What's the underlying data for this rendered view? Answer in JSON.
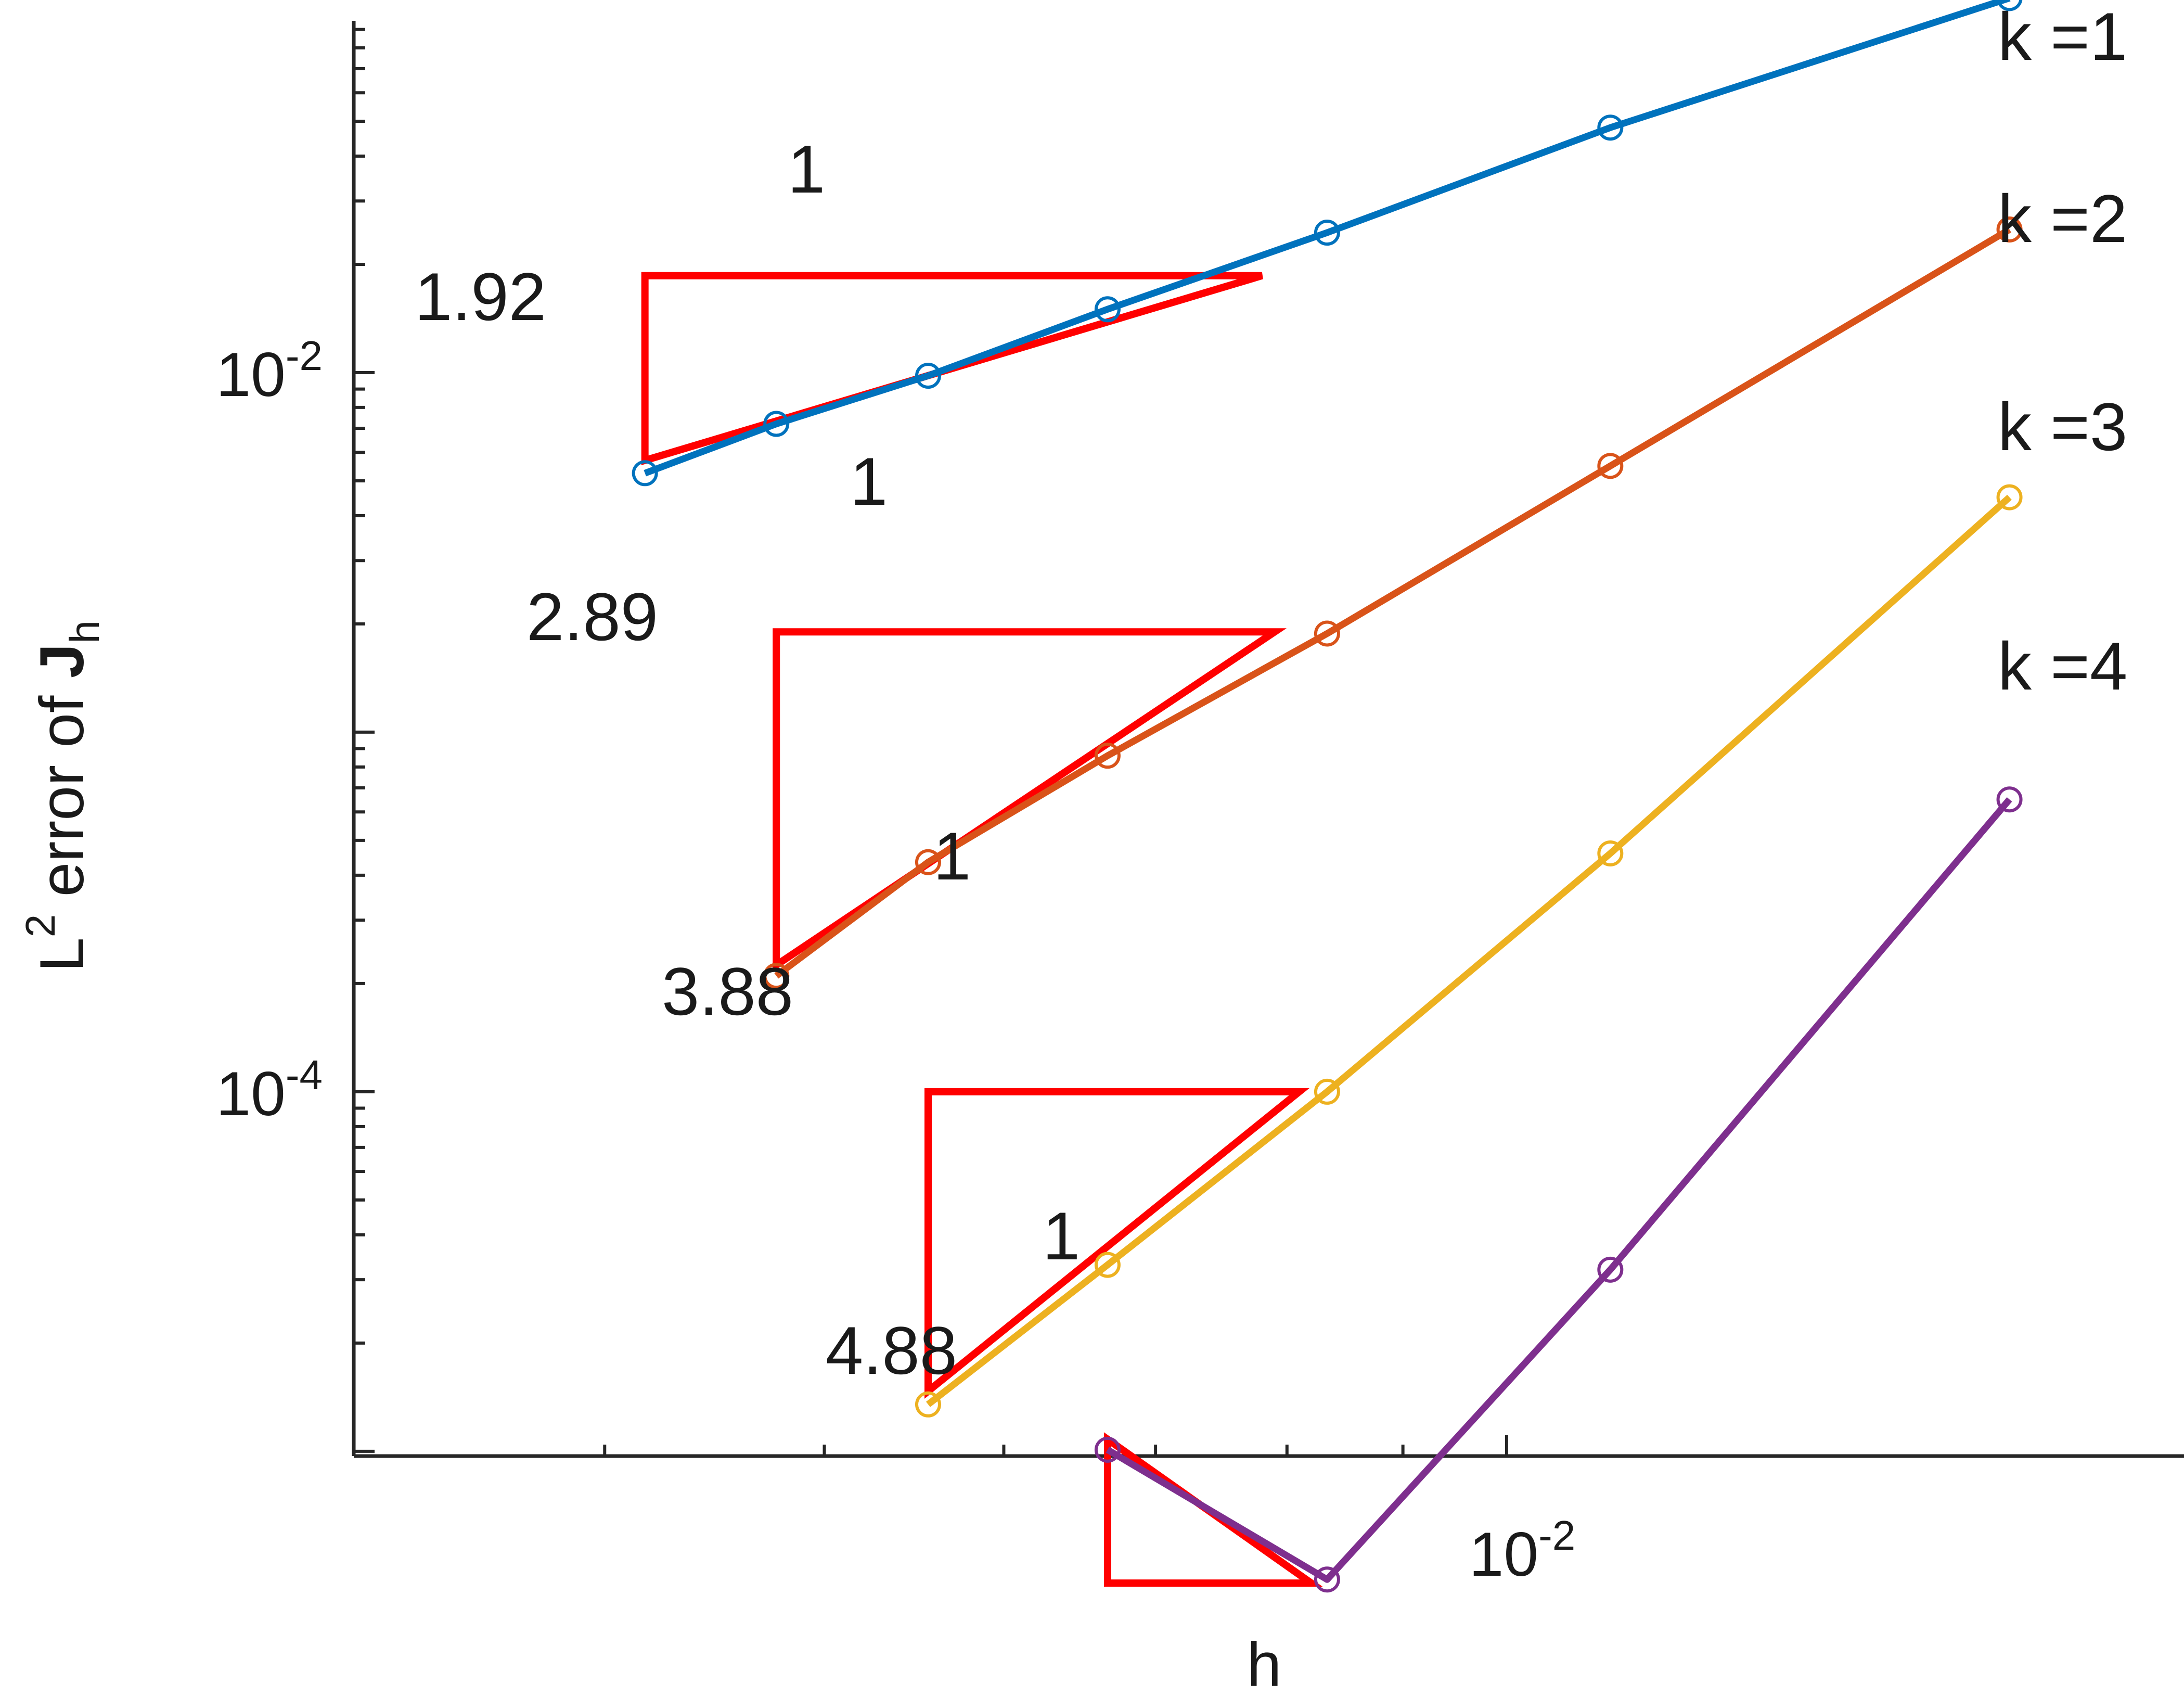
{
  "chart_data": {
    "type": "line",
    "xlabel": "h",
    "ylabel": "L² error of J",
    "ylabel_parts": {
      "superscript": "2",
      "pre": "L",
      "mid": " error of ",
      "bold": "J",
      "subscript": "h"
    },
    "xscale": "log",
    "yscale": "log",
    "xlim": [
      0.0031,
      0.0199
    ],
    "ylim": [
      9.7e-06,
      0.092
    ],
    "x_ticks": [
      {
        "value": 0.01,
        "base": "10",
        "exp": "-2"
      }
    ],
    "y_ticks": [
      {
        "value": 0.0001,
        "base": "10",
        "exp": "-4"
      },
      {
        "value": 0.01,
        "base": "10",
        "exp": "-2"
      }
    ],
    "grid": false,
    "x": [
      0.004167,
      0.004762,
      0.005556,
      0.006667,
      0.008333,
      0.011111,
      0.016667
    ],
    "series": [
      {
        "name": "k =1",
        "color": "#0072bd",
        "x": [
          0.004167,
          0.004762,
          0.005556,
          0.006667,
          0.008333,
          0.011111,
          0.016667
        ],
        "values": [
          0.00525,
          0.0072,
          0.0098,
          0.015,
          0.0245,
          0.048,
          0.11
        ]
      },
      {
        "name": "k =2",
        "color": "#d95319",
        "x": [
          0.004762,
          0.005556,
          0.006667,
          0.008333,
          0.011111,
          0.016667
        ],
        "values": [
          0.00021,
          0.000435,
          0.00086,
          0.00188,
          0.0055,
          0.025
        ]
      },
      {
        "name": "k =3",
        "color": "#edb120",
        "x": [
          0.005556,
          0.006667,
          0.008333,
          0.011111,
          0.016667
        ],
        "values": [
          1.35e-05,
          3.3e-05,
          0.0001,
          0.00046,
          0.0045
        ]
      },
      {
        "name": "k =4",
        "color": "#7e2f8e",
        "x": [
          0.006667,
          0.008333,
          0.011111,
          0.016667
        ],
        "values": [
          1.01e-05,
          4.4e-06,
          3.2e-05,
          0.00065
        ]
      }
    ],
    "slope_triangles": [
      {
        "color": "#ff0000",
        "slope_label": "1.92",
        "run_label": "1",
        "x_left": 0.004167,
        "x_right": 0.0078,
        "y_low": 0.0057,
        "y_high": 0.0186
      },
      {
        "color": "#ff0000",
        "slope_label": "2.89",
        "run_label": "1",
        "x_left": 0.004762,
        "x_right": 0.0079,
        "y_low": 0.000225,
        "y_high": 0.0019
      },
      {
        "color": "#ff0000",
        "slope_label": "3.88",
        "run_label": "1",
        "x_left": 0.005556,
        "x_right": 0.0081,
        "y_low": 1.47e-05,
        "y_high": 0.0001
      },
      {
        "color": "#ff0000",
        "slope_label": "4.88",
        "run_label": "1",
        "x_left": 0.006667,
        "x_right": 0.0082,
        "y_low": 1.08e-05,
        "y_high": 4.3e-06
      }
    ]
  }
}
